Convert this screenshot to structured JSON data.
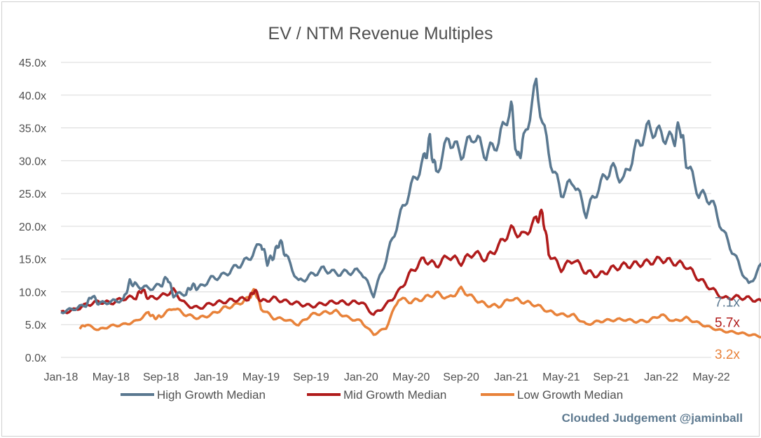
{
  "chart_data": {
    "type": "line",
    "title": "EV / NTM Revenue Multiples",
    "watermark": "Clouded Judgement @jaminball",
    "y_ticks": [
      "45.0x",
      "40.0x",
      "35.0x",
      "30.0x",
      "25.0x",
      "20.0x",
      "15.0x",
      "10.0x",
      "5.0x",
      "0.0x"
    ],
    "ylim": [
      0,
      45
    ],
    "x_ticks": [
      "Jan-18",
      "May-18",
      "Sep-18",
      "Jan-19",
      "May-19",
      "Sep-19",
      "Jan-20",
      "May-20",
      "Sep-20",
      "Jan-21",
      "May-21",
      "Sep-21",
      "Jan-22",
      "May-22"
    ],
    "grid": true,
    "legend_position": "bottom",
    "series": [
      {
        "name": "High Growth Median",
        "color": "#5a7890",
        "end_label": "7.1x",
        "points": [
          [
            0,
            6.9
          ],
          [
            1,
            7.4
          ],
          [
            2,
            8
          ],
          [
            2.5,
            9.5
          ],
          [
            3,
            8.2
          ],
          [
            4,
            8.5
          ],
          [
            5,
            8.8
          ],
          [
            5.5,
            11.5
          ],
          [
            6,
            11
          ],
          [
            7,
            10.5
          ],
          [
            8,
            11
          ],
          [
            8.5,
            12.3
          ],
          [
            9,
            9.5
          ],
          [
            10,
            9.8
          ],
          [
            10.5,
            11
          ],
          [
            11,
            10.5
          ],
          [
            12,
            12
          ],
          [
            13,
            12.5
          ],
          [
            14,
            13.8
          ],
          [
            15,
            15
          ],
          [
            16,
            17.5
          ],
          [
            16.5,
            14.5
          ],
          [
            17,
            15.5
          ],
          [
            17.5,
            17.8
          ],
          [
            18,
            15.5
          ],
          [
            19,
            11.5
          ],
          [
            20,
            12.5
          ],
          [
            21,
            13.5
          ],
          [
            22,
            12.8
          ],
          [
            23,
            13
          ],
          [
            24,
            13.2
          ],
          [
            25,
            9.5
          ],
          [
            26,
            15
          ],
          [
            27,
            21
          ],
          [
            28,
            26
          ],
          [
            29,
            30
          ],
          [
            29.5,
            33
          ],
          [
            30,
            28
          ],
          [
            31,
            33.5
          ],
          [
            32,
            31
          ],
          [
            33,
            34
          ],
          [
            34,
            31
          ],
          [
            35,
            33
          ],
          [
            36,
            38.5
          ],
          [
            36.5,
            30
          ],
          [
            37,
            33
          ],
          [
            38,
            41.5
          ],
          [
            39,
            31
          ],
          [
            40,
            25
          ],
          [
            41,
            27
          ],
          [
            42,
            22
          ],
          [
            43,
            26
          ],
          [
            44,
            29
          ],
          [
            45,
            27
          ],
          [
            46,
            32
          ],
          [
            47,
            35
          ],
          [
            48,
            34
          ],
          [
            49,
            33
          ],
          [
            49.5,
            35.5
          ],
          [
            50,
            30
          ],
          [
            51,
            25
          ],
          [
            52,
            24
          ],
          [
            53,
            19
          ],
          [
            54,
            15
          ],
          [
            55,
            11
          ],
          [
            56,
            14
          ],
          [
            57,
            10
          ],
          [
            58,
            8.5
          ],
          [
            59,
            7.1
          ]
        ]
      },
      {
        "name": "Mid Growth Median",
        "color": "#b01b1b",
        "end_label": "5.7x",
        "points": [
          [
            0,
            6.8
          ],
          [
            1,
            7.2
          ],
          [
            2,
            8
          ],
          [
            3,
            8.5
          ],
          [
            4,
            8.3
          ],
          [
            5,
            9
          ],
          [
            6,
            9.2
          ],
          [
            6.5,
            10.4
          ],
          [
            7,
            9
          ],
          [
            8,
            9.3
          ],
          [
            9,
            10.2
          ],
          [
            10,
            8
          ],
          [
            11,
            7.5
          ],
          [
            12,
            8.2
          ],
          [
            13,
            8.5
          ],
          [
            14,
            8.8
          ],
          [
            15,
            9
          ],
          [
            15.5,
            10.3
          ],
          [
            16,
            8.5
          ],
          [
            17,
            9
          ],
          [
            18,
            8.5
          ],
          [
            19,
            8.2
          ],
          [
            20,
            7.8
          ],
          [
            21,
            8.2
          ],
          [
            22,
            8.5
          ],
          [
            23,
            8.3
          ],
          [
            24,
            8.5
          ],
          [
            25,
            6.5
          ],
          [
            26,
            8
          ],
          [
            27,
            10
          ],
          [
            28,
            13
          ],
          [
            29,
            15
          ],
          [
            30,
            14
          ],
          [
            31,
            15.5
          ],
          [
            32,
            14.5
          ],
          [
            33,
            16
          ],
          [
            34,
            15
          ],
          [
            35,
            17
          ],
          [
            36,
            19.5
          ],
          [
            37,
            18.5
          ],
          [
            38,
            21
          ],
          [
            38.5,
            22
          ],
          [
            39,
            16
          ],
          [
            40,
            13.5
          ],
          [
            41,
            15
          ],
          [
            42,
            13
          ],
          [
            43,
            12.5
          ],
          [
            44,
            13.5
          ],
          [
            45,
            14
          ],
          [
            46,
            14.2
          ],
          [
            47,
            14.5
          ],
          [
            48,
            15
          ],
          [
            49,
            14.5
          ],
          [
            50,
            14
          ],
          [
            51,
            12
          ],
          [
            52,
            10.5
          ],
          [
            53,
            9
          ],
          [
            54,
            9.2
          ],
          [
            55,
            9
          ],
          [
            56,
            8.5
          ],
          [
            57,
            7
          ],
          [
            58,
            6.5
          ],
          [
            59,
            5.7
          ]
        ]
      },
      {
        "name": "Low Growth Median",
        "color": "#e8823a",
        "end_label": "3.2x",
        "points": [
          [
            1.5,
            4.5
          ],
          [
            2,
            5
          ],
          [
            3,
            4.2
          ],
          [
            4,
            4.8
          ],
          [
            5,
            5
          ],
          [
            6,
            5.5
          ],
          [
            7,
            6.8
          ],
          [
            7.5,
            6
          ],
          [
            8,
            6.3
          ],
          [
            9,
            7.6
          ],
          [
            10,
            6.5
          ],
          [
            11,
            6
          ],
          [
            12,
            6.5
          ],
          [
            13,
            7.5
          ],
          [
            14,
            8
          ],
          [
            15,
            9
          ],
          [
            15.5,
            10.3
          ],
          [
            16,
            7.5
          ],
          [
            17,
            6
          ],
          [
            18,
            5.8
          ],
          [
            19,
            5
          ],
          [
            20,
            6.5
          ],
          [
            21,
            6.8
          ],
          [
            22,
            7
          ],
          [
            23,
            6
          ],
          [
            24,
            5.5
          ],
          [
            25,
            3.5
          ],
          [
            26,
            4.5
          ],
          [
            27,
            9
          ],
          [
            28,
            8.5
          ],
          [
            29,
            9
          ],
          [
            30,
            9.8
          ],
          [
            31,
            9
          ],
          [
            32,
            10.4
          ],
          [
            33,
            9
          ],
          [
            34,
            8
          ],
          [
            35,
            7.8
          ],
          [
            36,
            9
          ],
          [
            37,
            8.5
          ],
          [
            38,
            8
          ],
          [
            39,
            7
          ],
          [
            40,
            6.5
          ],
          [
            41,
            6.4
          ],
          [
            42,
            5
          ],
          [
            43,
            5.5
          ],
          [
            44,
            5.7
          ],
          [
            45,
            5.8
          ],
          [
            46,
            5.5
          ],
          [
            47,
            5.6
          ],
          [
            48,
            6.5
          ],
          [
            49,
            5.5
          ],
          [
            50,
            6
          ],
          [
            51,
            5.2
          ],
          [
            52,
            4.5
          ],
          [
            53,
            4
          ],
          [
            54,
            3.8
          ],
          [
            55,
            3.5
          ],
          [
            56,
            3.2
          ],
          [
            57,
            3.6
          ],
          [
            58,
            3.5
          ],
          [
            59,
            3.2
          ]
        ]
      }
    ]
  }
}
